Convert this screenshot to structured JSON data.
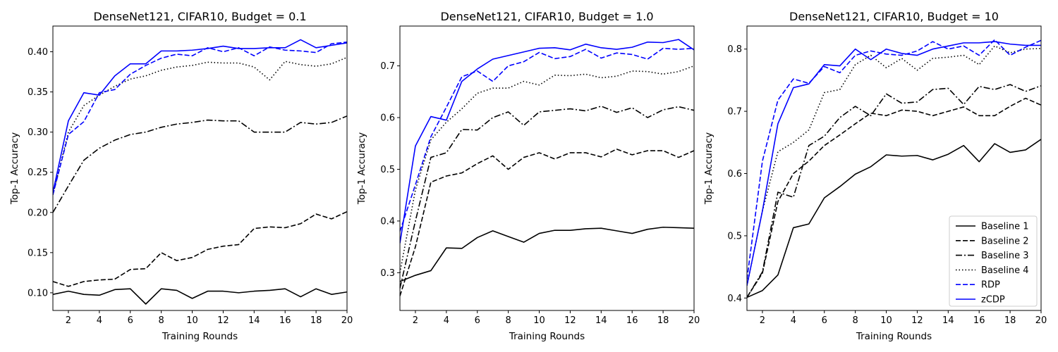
{
  "chart_data": [
    {
      "type": "line",
      "title": "DenseNet121, CIFAR10, Budget = 0.1",
      "xlabel": "Training Rounds",
      "ylabel": "Top-1 Accuracy",
      "xlim": [
        1,
        20
      ],
      "ylim": [
        0.078,
        0.432
      ],
      "xticks": [
        2,
        4,
        6,
        8,
        10,
        12,
        14,
        16,
        18,
        20
      ],
      "yticks": [
        0.1,
        0.15,
        0.2,
        0.25,
        0.3,
        0.35,
        0.4
      ],
      "ytick_labels": [
        "0.10",
        "0.15",
        "0.20",
        "0.25",
        "0.30",
        "0.35",
        "0.40"
      ],
      "x": [
        1,
        2,
        3,
        4,
        5,
        6,
        7,
        8,
        9,
        10,
        11,
        12,
        13,
        14,
        15,
        16,
        17,
        18,
        19,
        20
      ],
      "series": [
        {
          "name": "Baseline 1",
          "color": "#000000",
          "style": "solid",
          "values": [
            0.098,
            0.102,
            0.098,
            0.097,
            0.104,
            0.105,
            0.086,
            0.105,
            0.103,
            0.093,
            0.102,
            0.102,
            0.1,
            0.102,
            0.103,
            0.105,
            0.095,
            0.105,
            0.098,
            0.101
          ]
        },
        {
          "name": "Baseline 2",
          "color": "#000000",
          "style": "dashed",
          "values": [
            0.114,
            0.108,
            0.114,
            0.116,
            0.117,
            0.129,
            0.13,
            0.15,
            0.14,
            0.144,
            0.154,
            0.158,
            0.16,
            0.18,
            0.182,
            0.181,
            0.186,
            0.198,
            0.192,
            0.201
          ]
        },
        {
          "name": "Baseline 3",
          "color": "#000000",
          "style": "dashdot",
          "values": [
            0.2,
            0.233,
            0.265,
            0.28,
            0.29,
            0.297,
            0.3,
            0.306,
            0.31,
            0.312,
            0.315,
            0.314,
            0.314,
            0.3,
            0.3,
            0.3,
            0.312,
            0.31,
            0.312,
            0.32
          ]
        },
        {
          "name": "Baseline 4",
          "color": "#000000",
          "style": "dotted",
          "values": [
            0.222,
            0.3,
            0.333,
            0.346,
            0.357,
            0.366,
            0.37,
            0.377,
            0.381,
            0.383,
            0.387,
            0.386,
            0.386,
            0.381,
            0.365,
            0.388,
            0.384,
            0.382,
            0.385,
            0.393
          ]
        },
        {
          "name": "RDP",
          "color": "#0000ff",
          "style": "dashed",
          "values": [
            0.222,
            0.297,
            0.313,
            0.349,
            0.353,
            0.372,
            0.383,
            0.392,
            0.397,
            0.395,
            0.405,
            0.4,
            0.405,
            0.395,
            0.406,
            0.402,
            0.401,
            0.399,
            0.41,
            0.412
          ]
        },
        {
          "name": "zCDP",
          "color": "#0000ff",
          "style": "solid",
          "values": [
            0.225,
            0.314,
            0.349,
            0.346,
            0.37,
            0.385,
            0.385,
            0.401,
            0.401,
            0.402,
            0.404,
            0.407,
            0.404,
            0.404,
            0.405,
            0.405,
            0.415,
            0.405,
            0.408,
            0.411
          ]
        }
      ]
    },
    {
      "type": "line",
      "title": "DenseNet121, CIFAR10, Budget = 1.0",
      "xlabel": "Training Rounds",
      "ylabel": "Top-1 Accuracy",
      "xlim": [
        1,
        20
      ],
      "ylim": [
        0.227,
        0.777
      ],
      "xticks": [
        2,
        4,
        6,
        8,
        10,
        12,
        14,
        16,
        18,
        20
      ],
      "yticks": [
        0.3,
        0.4,
        0.5,
        0.6,
        0.7
      ],
      "ytick_labels": [
        "0.3",
        "0.4",
        "0.5",
        "0.6",
        "0.7"
      ],
      "x": [
        1,
        2,
        3,
        4,
        5,
        6,
        7,
        8,
        9,
        10,
        11,
        12,
        13,
        14,
        15,
        16,
        17,
        18,
        19,
        20
      ],
      "series": [
        {
          "name": "Baseline 1",
          "color": "#000000",
          "style": "solid",
          "values": [
            0.283,
            0.295,
            0.304,
            0.348,
            0.347,
            0.368,
            0.381,
            0.37,
            0.359,
            0.376,
            0.382,
            0.382,
            0.385,
            0.386,
            0.381,
            0.376,
            0.384,
            0.388,
            0.387,
            0.386
          ]
        },
        {
          "name": "Baseline 2",
          "color": "#000000",
          "style": "dashed",
          "values": [
            0.255,
            0.35,
            0.475,
            0.487,
            0.493,
            0.511,
            0.526,
            0.5,
            0.523,
            0.532,
            0.52,
            0.532,
            0.532,
            0.524,
            0.539,
            0.528,
            0.536,
            0.536,
            0.523,
            0.536
          ]
        },
        {
          "name": "Baseline 3",
          "color": "#000000",
          "style": "dashdot",
          "values": [
            0.27,
            0.4,
            0.523,
            0.532,
            0.577,
            0.576,
            0.6,
            0.611,
            0.585,
            0.611,
            0.614,
            0.617,
            0.613,
            0.622,
            0.61,
            0.619,
            0.6,
            0.615,
            0.621,
            0.614
          ]
        },
        {
          "name": "Baseline 4",
          "color": "#000000",
          "style": "dotted",
          "values": [
            0.3,
            0.46,
            0.557,
            0.591,
            0.617,
            0.647,
            0.657,
            0.657,
            0.67,
            0.663,
            0.682,
            0.681,
            0.684,
            0.677,
            0.68,
            0.69,
            0.689,
            0.684,
            0.689,
            0.7
          ]
        },
        {
          "name": "RDP",
          "color": "#0000ff",
          "style": "dashed",
          "values": [
            0.38,
            0.47,
            0.563,
            0.62,
            0.679,
            0.69,
            0.67,
            0.7,
            0.708,
            0.726,
            0.714,
            0.718,
            0.732,
            0.715,
            0.725,
            0.722,
            0.713,
            0.734,
            0.732,
            0.734
          ]
        },
        {
          "name": "zCDP",
          "color": "#0000ff",
          "style": "solid",
          "values": [
            0.357,
            0.545,
            0.602,
            0.595,
            0.67,
            0.694,
            0.713,
            0.72,
            0.727,
            0.734,
            0.735,
            0.731,
            0.742,
            0.735,
            0.732,
            0.736,
            0.746,
            0.745,
            0.751,
            0.731
          ]
        }
      ]
    },
    {
      "type": "line",
      "title": "DenseNet121, CIFAR10, Budget = 10",
      "xlabel": "Training Rounds",
      "ylabel": "Top-1 Accuracy",
      "xlim": [
        1,
        20
      ],
      "ylim": [
        0.38,
        0.837
      ],
      "xticks": [
        2,
        4,
        6,
        8,
        10,
        12,
        14,
        16,
        18,
        20
      ],
      "yticks": [
        0.4,
        0.5,
        0.6,
        0.7,
        0.8
      ],
      "ytick_labels": [
        "0.4",
        "0.5",
        "0.6",
        "0.7",
        "0.8"
      ],
      "x": [
        1,
        2,
        3,
        4,
        5,
        6,
        7,
        8,
        9,
        10,
        11,
        12,
        13,
        14,
        15,
        16,
        17,
        18,
        19,
        20
      ],
      "series": [
        {
          "name": "Baseline 1",
          "color": "#000000",
          "style": "solid",
          "values": [
            0.401,
            0.412,
            0.437,
            0.513,
            0.519,
            0.561,
            0.579,
            0.599,
            0.611,
            0.63,
            0.628,
            0.629,
            0.622,
            0.631,
            0.645,
            0.619,
            0.648,
            0.634,
            0.638,
            0.655
          ]
        },
        {
          "name": "Baseline 2",
          "color": "#000000",
          "style": "dashed",
          "values": [
            0.401,
            0.44,
            0.555,
            0.6,
            0.62,
            0.645,
            0.662,
            0.68,
            0.697,
            0.693,
            0.702,
            0.7,
            0.693,
            0.7,
            0.707,
            0.693,
            0.693,
            0.708,
            0.721,
            0.71
          ]
        },
        {
          "name": "Baseline 3",
          "color": "#000000",
          "style": "dashdot",
          "values": [
            0.401,
            0.442,
            0.57,
            0.562,
            0.645,
            0.66,
            0.69,
            0.708,
            0.693,
            0.728,
            0.713,
            0.715,
            0.735,
            0.737,
            0.711,
            0.74,
            0.735,
            0.743,
            0.732,
            0.741
          ]
        },
        {
          "name": "Baseline 4",
          "color": "#000000",
          "style": "dotted",
          "values": [
            0.42,
            0.54,
            0.635,
            0.65,
            0.67,
            0.73,
            0.735,
            0.775,
            0.79,
            0.77,
            0.785,
            0.766,
            0.785,
            0.787,
            0.79,
            0.775,
            0.805,
            0.794,
            0.8,
            0.801
          ]
        },
        {
          "name": "RDP",
          "color": "#0000ff",
          "style": "dashed",
          "values": [
            0.43,
            0.62,
            0.718,
            0.752,
            0.745,
            0.772,
            0.762,
            0.79,
            0.797,
            0.792,
            0.79,
            0.797,
            0.812,
            0.8,
            0.805,
            0.79,
            0.815,
            0.79,
            0.803,
            0.814
          ]
        },
        {
          "name": "zCDP",
          "color": "#0000ff",
          "style": "solid",
          "values": [
            0.42,
            0.54,
            0.68,
            0.738,
            0.744,
            0.775,
            0.773,
            0.8,
            0.783,
            0.8,
            0.793,
            0.79,
            0.8,
            0.805,
            0.81,
            0.81,
            0.812,
            0.808,
            0.806,
            0.806
          ]
        }
      ],
      "legend": "bottom-right"
    }
  ]
}
